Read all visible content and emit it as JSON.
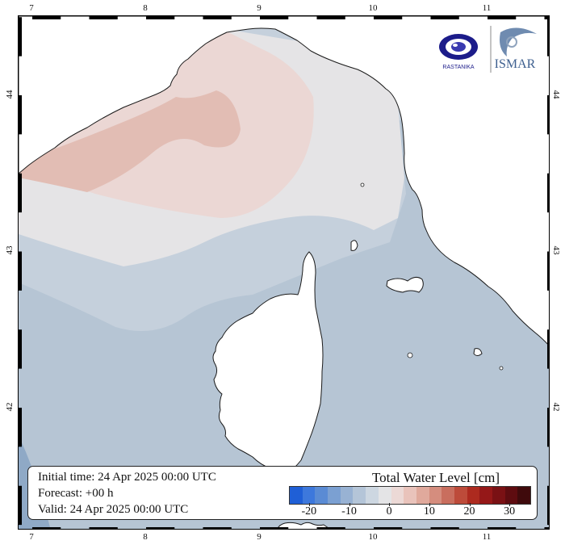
{
  "map": {
    "ticks": {
      "lon_top": [
        "7",
        "8",
        "9",
        "10",
        "11"
      ],
      "lon_bottom": [
        "7",
        "8",
        "9",
        "10",
        "11"
      ],
      "lat_left": [
        "44",
        "43",
        "42"
      ],
      "lat_right": [
        "44",
        "43",
        "42"
      ]
    }
  },
  "info": {
    "initial": "Initial time: 24 Apr 2025 00:00 UTC",
    "forecast": "Forecast: +00 h",
    "valid": "Valid: 24 Apr 2025 00:00 UTC"
  },
  "legend": {
    "title": "Total Water Level [cm]",
    "ticks": [
      "-20",
      "-10",
      "0",
      "10",
      "20",
      "30"
    ],
    "colors": [
      "#1f5fd6",
      "#3d78dc",
      "#5a8bd4",
      "#7ba0d2",
      "#98b2d3",
      "#b4c5d8",
      "#cdd7e1",
      "#e4e4e6",
      "#ecd9d6",
      "#e9c3bb",
      "#e0a99c",
      "#d58d7e",
      "#c96e5e",
      "#bd4b3a",
      "#ad2a1f",
      "#951818",
      "#7a1114",
      "#5e0c10",
      "#3f0a0c"
    ]
  },
  "logos": {
    "left_text": "RASTANIKA",
    "right_text": "ISMAR"
  },
  "colors": {
    "land": "#ffffff",
    "coast": "#1a1a1a",
    "sea_pink_strong": "#e3b6ad",
    "sea_pink": "#ebd6d3",
    "sea_neutral": "#e5e4e6",
    "sea_blue_light": "#c3cdd9",
    "sea_blue": "#b6c5d4",
    "sea_blue_deep": "#a7bbcf"
  }
}
